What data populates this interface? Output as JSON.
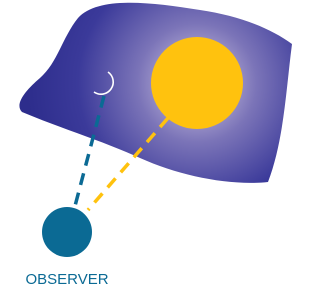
{
  "labels": {
    "observer": "OBSERVER"
  }
}
